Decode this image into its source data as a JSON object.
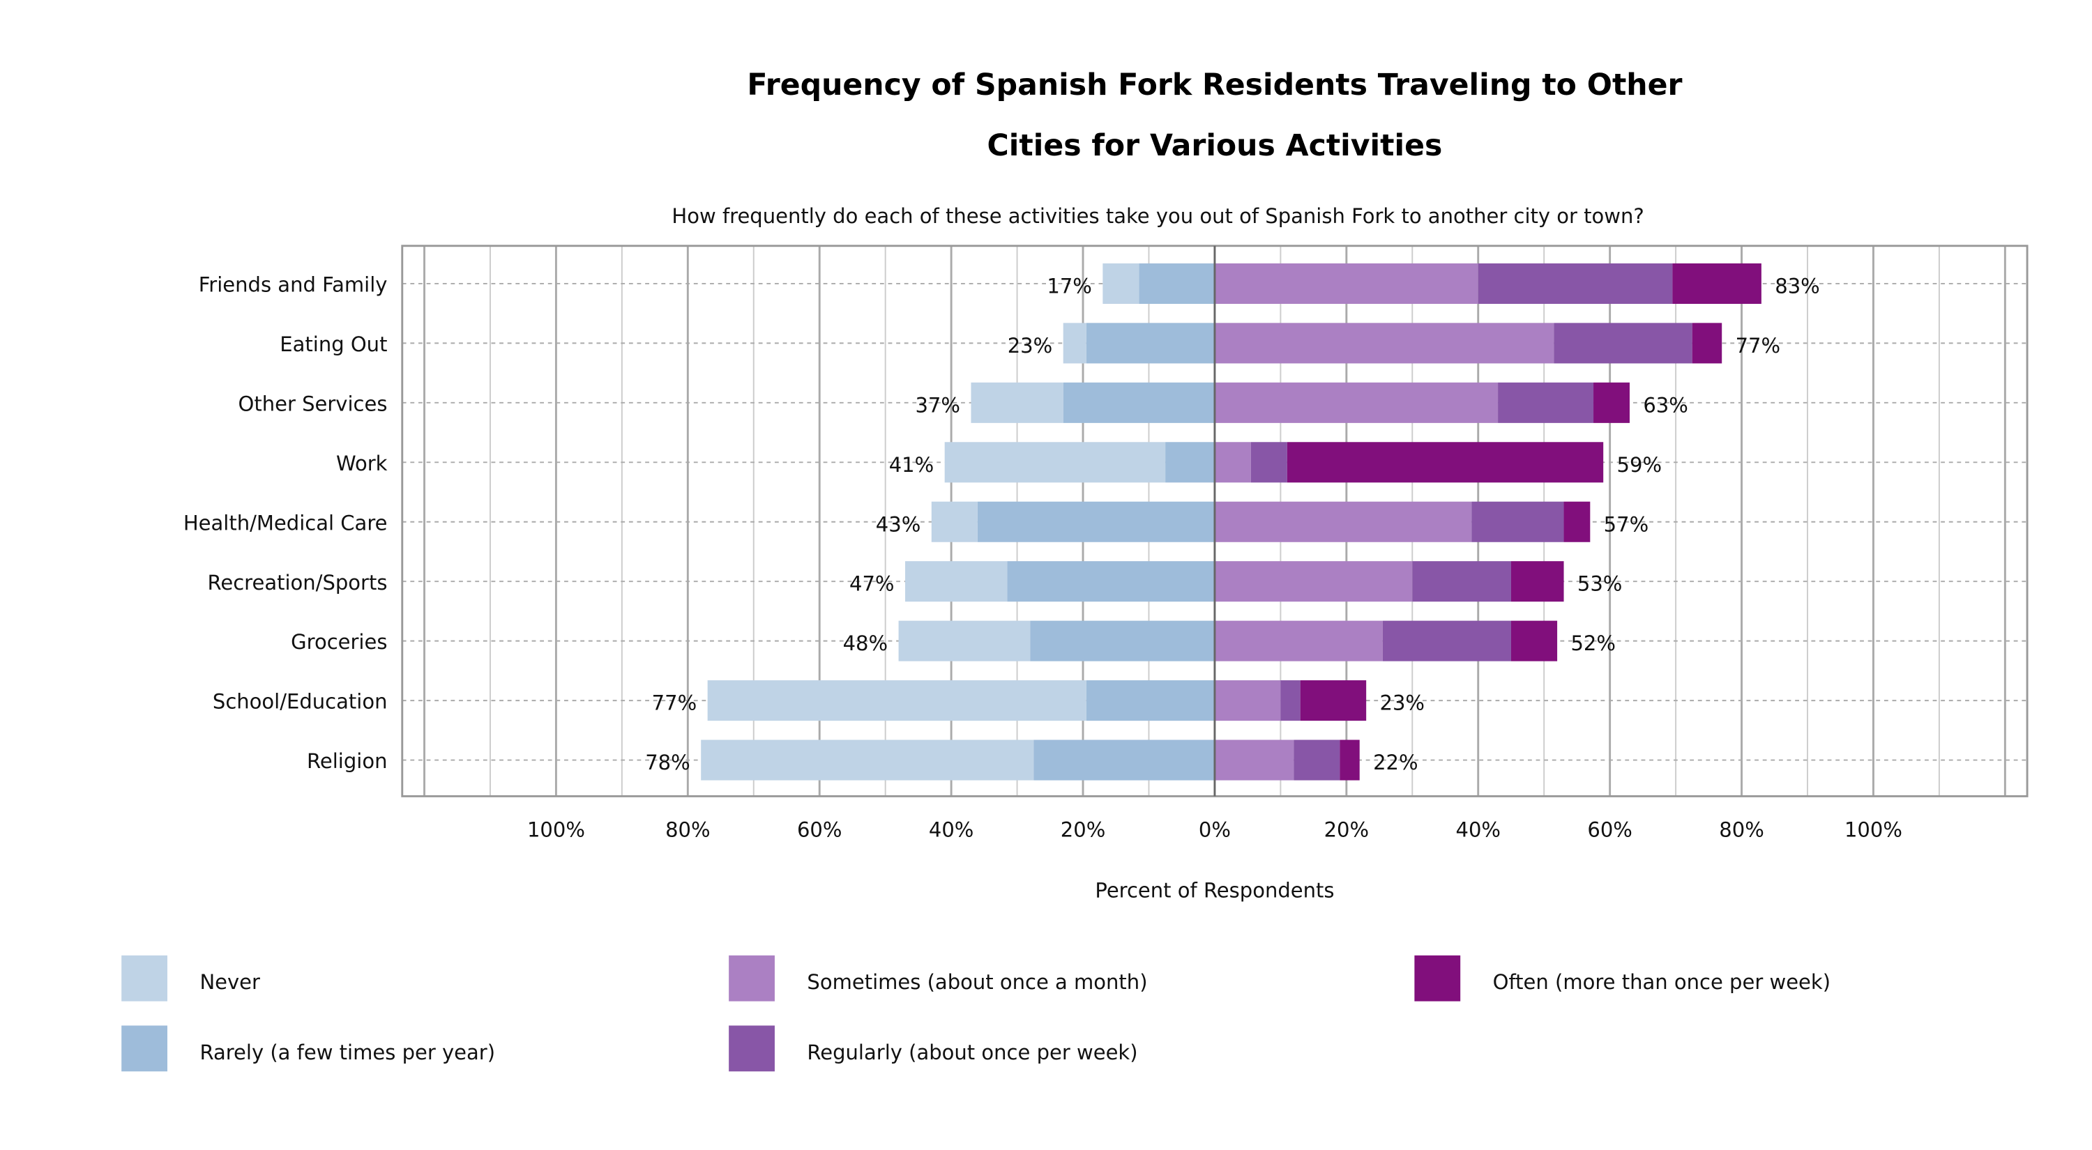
{
  "chart_data": {
    "type": "bar",
    "orientation": "horizontal",
    "stacked": "diverging",
    "title": "Frequency of Spanish Fork Residents Traveling to Other Cities for Various Activities",
    "title_lines": [
      "Frequency of Spanish Fork Residents Traveling to Other",
      "Cities for Various Activities"
    ],
    "subtitle": "How frequently do each of these activities take you out of Spanish Fork to another city or town?",
    "xlabel": "Percent of Respondents",
    "ylabel": "",
    "xlim": [
      -123,
      123
    ],
    "grid": true,
    "legend_position": "bottom",
    "x_ticks": [
      -100,
      -80,
      -60,
      -40,
      -20,
      0,
      20,
      40,
      60,
      80,
      100
    ],
    "x_tick_labels": [
      "100%",
      "80%",
      "60%",
      "40%",
      "20%",
      "0%",
      "20%",
      "40%",
      "60%",
      "80%",
      "100%"
    ],
    "categories": [
      "Friends and Family",
      "Eating Out",
      "Other Services",
      "Work",
      "Health/Medical Care",
      "Recreation/Sports",
      "Groceries",
      "School/Education",
      "Religion"
    ],
    "series": [
      {
        "name": "Never",
        "side": "negative",
        "color": "#bfd3e6",
        "values": [
          5.5,
          3.5,
          14,
          33.5,
          7,
          15.5,
          20,
          57.5,
          50.5
        ]
      },
      {
        "name": "Rarely (a few times per year)",
        "side": "negative",
        "color": "#9ebcda",
        "values": [
          11.5,
          19.5,
          23,
          7.5,
          36,
          31.5,
          28,
          19.5,
          27.5
        ]
      },
      {
        "name": "Sometimes (about once a month)",
        "side": "positive",
        "color": "#ab80c3",
        "values": [
          40,
          51.5,
          43,
          5.5,
          39,
          30,
          25.5,
          10,
          12
        ]
      },
      {
        "name": "Regularly (about once per week)",
        "side": "positive",
        "color": "#8856a7",
        "values": [
          29.5,
          21,
          14.5,
          5.5,
          14,
          15,
          19.5,
          3,
          7
        ]
      },
      {
        "name": "Often (more than once per week)",
        "side": "positive",
        "color": "#810f7c",
        "values": [
          13.5,
          4.5,
          5.5,
          48,
          4,
          8,
          7,
          10,
          3
        ]
      }
    ],
    "negative_totals": [
      "17%",
      "23%",
      "37%",
      "41%",
      "43%",
      "47%",
      "48%",
      "77%",
      "78%"
    ],
    "positive_totals": [
      "83%",
      "77%",
      "63%",
      "59%",
      "57%",
      "53%",
      "52%",
      "23%",
      "22%"
    ]
  }
}
